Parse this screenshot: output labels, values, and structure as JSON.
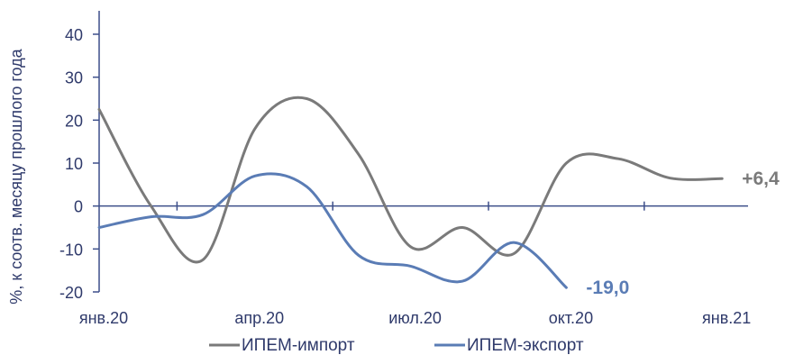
{
  "chart_data": {
    "type": "line",
    "title": "",
    "ylabel": "%, к соотв.  месяцу прошлого года",
    "xlabel": "",
    "ylim": [
      -20,
      40
    ],
    "yticks": [
      -20,
      -10,
      0,
      10,
      20,
      30,
      40
    ],
    "x_range": [
      0,
      12.5
    ],
    "categories": [
      "янв.20",
      "апр.20",
      "июл.20",
      "окт.20",
      "янв.21"
    ],
    "category_x": [
      0,
      3,
      6,
      9,
      12
    ],
    "grid": false,
    "legend_position": "bottom",
    "colors": {
      "axis": "#3d4f8a",
      "text": "#2f3a6b"
    },
    "series": [
      {
        "name": "ИПЕМ-импорт",
        "color": "#7a7a7a",
        "x": [
          0,
          1,
          2,
          3,
          4,
          5,
          6,
          7,
          8,
          9,
          10,
          11,
          12
        ],
        "y": [
          22.5,
          0,
          -12.5,
          18,
          25,
          12,
          -9.5,
          -5,
          -11,
          10,
          11,
          6.5,
          6.4
        ],
        "end_label": "+6,4"
      },
      {
        "name": "ИПЕМ-экспорт",
        "color": "#5a7cb5",
        "x": [
          0,
          1,
          2,
          3,
          4,
          5,
          6,
          7,
          8,
          9
        ],
        "y": [
          -5,
          -2.5,
          -2,
          7,
          4.5,
          -11.5,
          -14,
          -17.5,
          -8.5,
          -19
        ],
        "end_label": "-19,0"
      }
    ]
  }
}
